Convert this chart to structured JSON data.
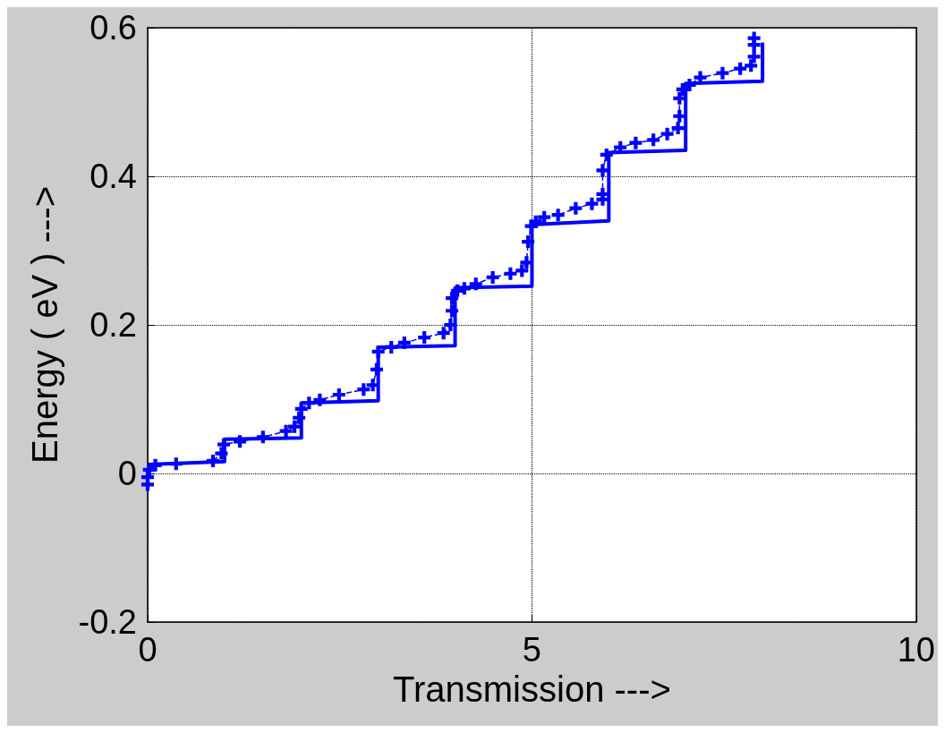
{
  "chart_data": {
    "type": "line",
    "xlabel": "Transmission --->",
    "ylabel": "Energy ( eV ) --->",
    "xlim": [
      0,
      10
    ],
    "xticks": [
      0,
      5,
      10
    ],
    "ylim": [
      -0.2,
      0.6
    ],
    "yticks": [
      -0.2,
      0,
      0.2,
      0.4,
      0.6
    ],
    "grid": true,
    "series": [
      {
        "color": "#0000ff",
        "line_style": "solid",
        "marker": "none",
        "x": [
          0,
          1,
          1,
          2,
          2,
          3,
          3,
          4,
          4,
          5,
          5,
          6,
          6,
          7,
          7,
          8,
          8
        ],
        "values": [
          0.012,
          0.016,
          0.046,
          0.048,
          0.095,
          0.098,
          0.17,
          0.172,
          0.25,
          0.252,
          0.335,
          0.34,
          0.432,
          0.435,
          0.525,
          0.528,
          0.58
        ]
      },
      {
        "color": "#0000ff",
        "line_style": "dashed",
        "marker": "cross",
        "x": [
          0,
          0,
          0.02,
          0.1,
          0.37,
          0.85,
          0.96,
          0.99,
          1.2,
          1.5,
          1.8,
          1.91,
          1.97,
          2.0,
          2.1,
          2.24,
          2.49,
          2.81,
          2.93,
          2.98,
          3.0,
          3.17,
          3.34,
          3.6,
          3.85,
          3.94,
          3.96,
          3.96,
          4.03,
          4.12,
          4.27,
          4.49,
          4.72,
          4.87,
          4.93,
          4.95,
          4.99,
          5.05,
          5.16,
          5.34,
          5.57,
          5.78,
          5.92,
          5.92,
          5.92,
          5.97,
          6.15,
          6.35,
          6.58,
          6.76,
          6.9,
          6.92,
          6.92,
          6.96,
          7.05,
          7.19,
          7.48,
          7.71,
          7.85,
          7.89,
          7.89,
          7.89
        ],
        "values": [
          -0.015,
          -0.005,
          0.005,
          0.011,
          0.013,
          0.017,
          0.027,
          0.039,
          0.043,
          0.049,
          0.057,
          0.063,
          0.075,
          0.087,
          0.095,
          0.099,
          0.106,
          0.113,
          0.119,
          0.14,
          0.164,
          0.17,
          0.176,
          0.183,
          0.189,
          0.2,
          0.219,
          0.236,
          0.246,
          0.249,
          0.255,
          0.264,
          0.269,
          0.273,
          0.284,
          0.312,
          0.333,
          0.339,
          0.345,
          0.348,
          0.357,
          0.363,
          0.369,
          0.376,
          0.408,
          0.429,
          0.439,
          0.445,
          0.449,
          0.457,
          0.465,
          0.481,
          0.505,
          0.517,
          0.523,
          0.533,
          0.539,
          0.545,
          0.549,
          0.561,
          0.577,
          0.586
        ]
      }
    ]
  }
}
